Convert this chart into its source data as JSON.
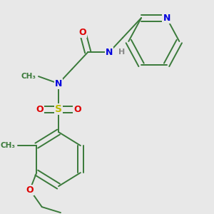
{
  "background_color": "#e8e8e8",
  "fig_size": [
    3.0,
    3.0
  ],
  "dpi": 100,
  "bond_color": "#3a7a3a",
  "bond_width": 1.4,
  "atom_colors": {
    "N": "#0000dd",
    "O": "#dd0000",
    "S": "#bbbb00",
    "H": "#888888",
    "C": "#3a7a3a"
  },
  "font_size": 8.0
}
